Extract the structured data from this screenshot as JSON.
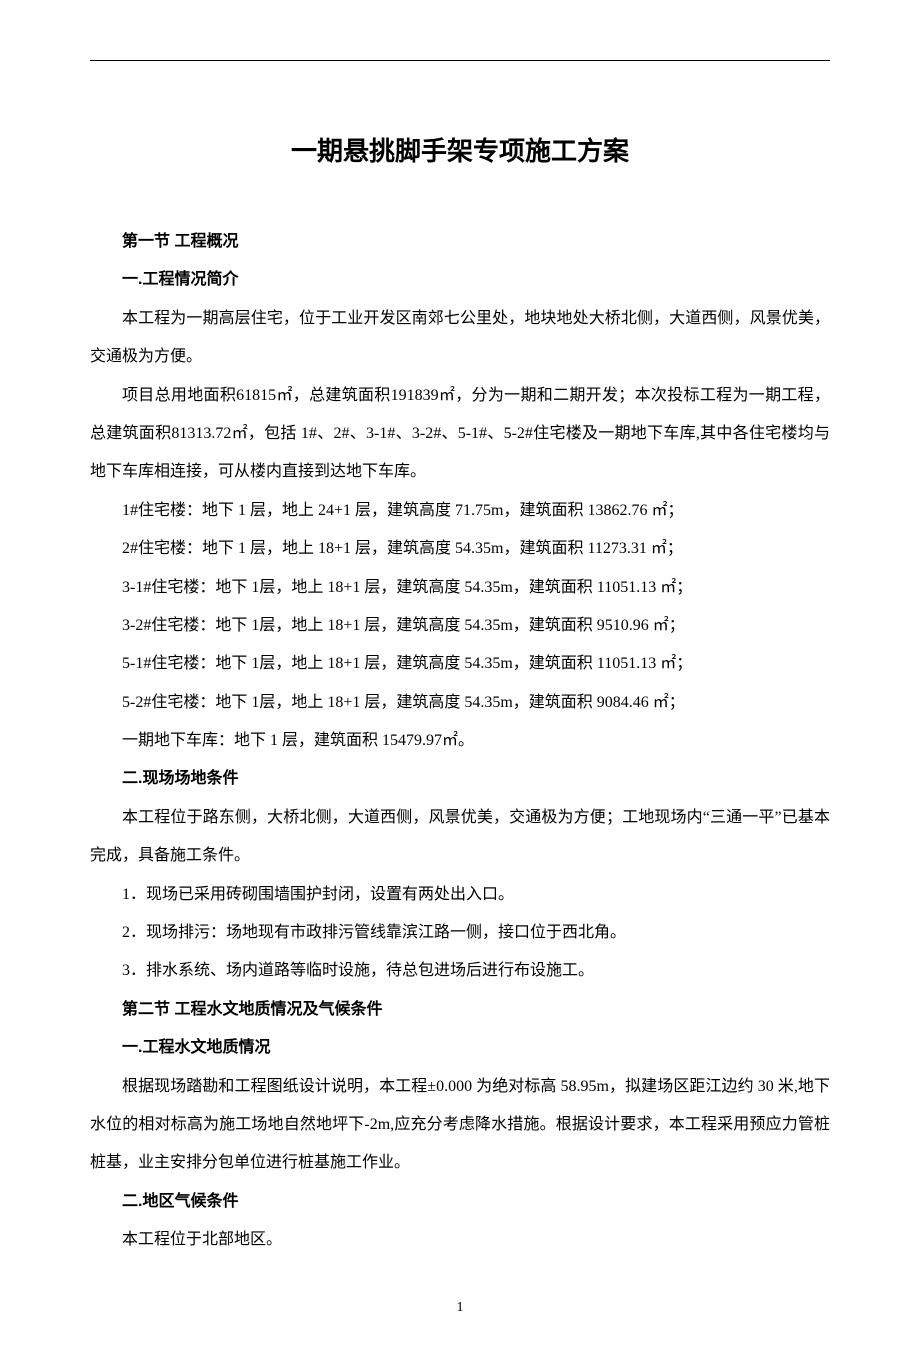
{
  "page": {
    "title": "一期悬挑脚手架专项施工方案",
    "page_number": "1",
    "colors": {
      "text": "#000000",
      "background": "#ffffff",
      "rule": "#000000"
    },
    "fonts": {
      "title_family": "SimHei",
      "title_size_pt": 20,
      "heading_family": "SimHei",
      "heading_size_pt": 12,
      "body_family": "SimSun",
      "body_size_pt": 12,
      "line_height": 2.4
    }
  },
  "section1": {
    "heading": "第一节 工程概况",
    "sub1": {
      "heading": "一.工程情况简介",
      "p1": "本工程为一期高层住宅，位于工业开发区南郊七公里处，地块地处大桥北侧，大道西侧，风景优美，交通极为方便。",
      "p2": "项目总用地面积61815㎡，总建筑面积191839㎡，分为一期和二期开发；本次投标工程为一期工程，总建筑面积81313.72㎡，包括 1#、2#、3-1#、3-2#、5-1#、5-2#住宅楼及一期地下车库,其中各住宅楼均与地下车库相连接，可从楼内直接到达地下车库。",
      "b1": "1#住宅楼：地下 1 层，地上 24+1 层，建筑高度 71.75m，建筑面积 13862.76 ㎡；",
      "b2": "2#住宅楼：地下 1 层，地上 18+1 层，建筑高度 54.35m，建筑面积 11273.31 ㎡；",
      "b3": "3-1#住宅楼：地下 1层，地上 18+1 层，建筑高度 54.35m，建筑面积 11051.13 ㎡；",
      "b4": "3-2#住宅楼：地下 1层，地上 18+1 层，建筑高度 54.35m，建筑面积 9510.96 ㎡；",
      "b5": "5-1#住宅楼：地下 1层，地上 18+1 层，建筑高度 54.35m，建筑面积 11051.13 ㎡；",
      "b6": "5-2#住宅楼：地下 1层，地上 18+1 层，建筑高度 54.35m，建筑面积 9084.46 ㎡；",
      "b7": "一期地下车库：地下 1 层，建筑面积 15479.97㎡。"
    },
    "sub2": {
      "heading": "二.现场场地条件",
      "p1": "本工程位于路东侧，大桥北侧，大道西侧，风景优美，交通极为方便；工地现场内“三通一平”已基本完成，具备施工条件。",
      "i1": "1．现场已采用砖砌围墙围护封闭，设置有两处出入口。",
      "i2": "2．现场排污：场地现有市政排污管线靠滨江路一侧，接口位于西北角。",
      "i3": "3．排水系统、场内道路等临时设施，待总包进场后进行布设施工。"
    }
  },
  "section2": {
    "heading": "第二节 工程水文地质情况及气候条件",
    "sub1": {
      "heading": "一.工程水文地质情况",
      "p1": "根据现场踏勘和工程图纸设计说明，本工程±0.000 为绝对标高 58.95m，拟建场区距江边约 30 米,地下水位的相对标高为施工场地自然地坪下-2m,应充分考虑降水措施。根据设计要求，本工程采用预应力管桩桩基，业主安排分包单位进行桩基施工作业。"
    },
    "sub2": {
      "heading": "二.地区气候条件",
      "p1": "本工程位于北部地区。"
    }
  }
}
